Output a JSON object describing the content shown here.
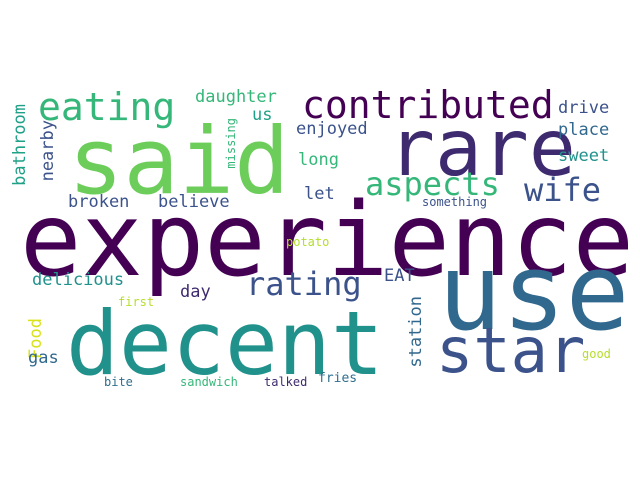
{
  "palette": {
    "dark_purple": "#440154",
    "purple": "#3e2a6f",
    "indigo": "#3b528b",
    "blue": "#31688e",
    "steel_blue": "#2f6f8e",
    "teal": "#21918c",
    "teal_green": "#1fa187",
    "green": "#35b779",
    "light_green": "#6ccd5a",
    "lime": "#b5de2b",
    "yellow": "#d8e219"
  },
  "words": [
    {
      "text": "experience",
      "color": "#440154"
    },
    {
      "text": "use",
      "color": "#31688e"
    },
    {
      "text": "said",
      "color": "#6ccd5a"
    },
    {
      "text": "decent",
      "color": "#21918c"
    },
    {
      "text": "rare",
      "color": "#3e2a6f"
    },
    {
      "text": "star",
      "color": "#3b528b"
    },
    {
      "text": "contributed",
      "color": "#440154"
    },
    {
      "text": "eating",
      "color": "#35b779"
    },
    {
      "text": "aspects",
      "color": "#35b779"
    },
    {
      "text": "rating",
      "color": "#3b528b"
    },
    {
      "text": "wife",
      "color": "#3b528b"
    },
    {
      "text": "believe",
      "color": "#3b528b"
    },
    {
      "text": "broken",
      "color": "#3b528b"
    },
    {
      "text": "delicious",
      "color": "#21918c"
    },
    {
      "text": "daughter",
      "color": "#35b779"
    },
    {
      "text": "enjoyed",
      "color": "#3b528b"
    },
    {
      "text": "long",
      "color": "#35b779"
    },
    {
      "text": "let",
      "color": "#3b528b"
    },
    {
      "text": "drive",
      "color": "#3b528b"
    },
    {
      "text": "place",
      "color": "#31688e"
    },
    {
      "text": "sweet",
      "color": "#21918c"
    },
    {
      "text": "day",
      "color": "#3e2a6f"
    },
    {
      "text": "us",
      "color": "#1fa187"
    },
    {
      "text": "EAT",
      "color": "#3b528b"
    },
    {
      "text": "station",
      "color": "#31688e"
    },
    {
      "text": "bathroom",
      "color": "#1fa187"
    },
    {
      "text": "nearby",
      "color": "#3b528b"
    },
    {
      "text": "Food",
      "color": "#d8e219"
    },
    {
      "text": "gas",
      "color": "#31688e"
    },
    {
      "text": "missing",
      "color": "#35b779"
    },
    {
      "text": "something",
      "color": "#3b528b"
    },
    {
      "text": "potato",
      "color": "#b5de2b"
    },
    {
      "text": "first",
      "color": "#b5de2b"
    },
    {
      "text": "good",
      "color": "#b5de2b"
    },
    {
      "text": "bite",
      "color": "#2f6f8e"
    },
    {
      "text": "sandwich",
      "color": "#35b779"
    },
    {
      "text": "talked",
      "color": "#3e2a6f"
    },
    {
      "text": "fries",
      "color": "#2f6f8e"
    }
  ]
}
